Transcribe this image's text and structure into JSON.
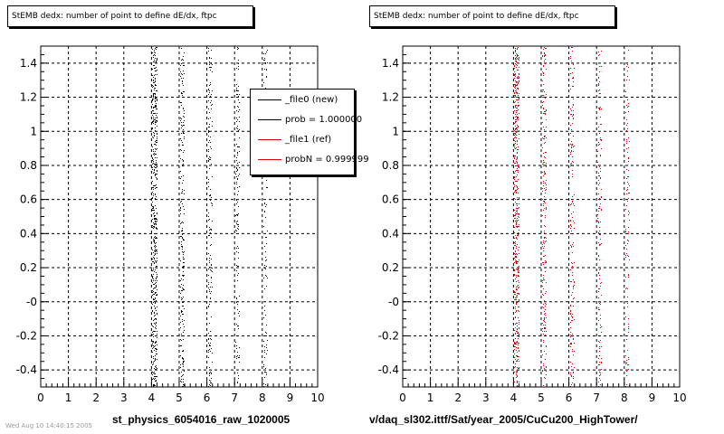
{
  "colors": {
    "file0": "#000000",
    "file1": "#dd0000",
    "grid": "#000000",
    "background": "#ffffff"
  },
  "footnote": "Wed Aug 10 14:40:15 2005",
  "chart_data": [
    {
      "type": "scatter",
      "title": "StEMB dedx: number of point to define dE/dx, ftpc",
      "xlabel": "st_physics_6054016_raw_1020005",
      "ylabel": "",
      "xlim": [
        0,
        10
      ],
      "ylim": [
        -0.5,
        1.5
      ],
      "xticks": [
        "0",
        "1",
        "2",
        "3",
        "4",
        "5",
        "6",
        "7",
        "8",
        "9",
        "10"
      ],
      "yticks": [
        "-0.4",
        "-0.2",
        "-0",
        "0.2",
        "0.4",
        "0.6",
        "0.8",
        "1",
        "1.2",
        "1.4"
      ],
      "grid": true,
      "legend_position": "top-right",
      "series": [
        {
          "name": "_file0 (new)",
          "color": "#000000",
          "x_bands": [
            4.1,
            5.1,
            6.1,
            7.1,
            8.1
          ],
          "y_range": [
            -0.5,
            1.5
          ]
        }
      ],
      "legend": [
        {
          "label": "_file0 (new)",
          "color": "#000000"
        },
        {
          "label": "prob = 1.000000",
          "color": "#000000"
        },
        {
          "label": "_file1 (ref)",
          "color": "#dd0000"
        },
        {
          "label": "probN = 0.999999",
          "color": "#dd0000"
        }
      ]
    },
    {
      "type": "scatter",
      "title": "StEMB dedx: number of point to define dE/dx, ftpc",
      "xlabel": "v/daq_sl302.ittf/Sat/year_2005/CuCu200_HighTower/",
      "ylabel": "",
      "xlim": [
        0,
        10
      ],
      "ylim": [
        -0.5,
        1.5
      ],
      "xticks": [
        "0",
        "1",
        "2",
        "3",
        "4",
        "5",
        "6",
        "7",
        "8",
        "9",
        "10"
      ],
      "yticks": [
        "-0.4",
        "-0.2",
        "-0",
        "0.2",
        "0.4",
        "0.6",
        "0.8",
        "1",
        "1.2",
        "1.4"
      ],
      "grid": true,
      "series": [
        {
          "name": "_file1 (ref)",
          "color": "#dd0000",
          "x_bands": [
            4.1,
            5.1,
            6.1,
            7.1,
            8.1
          ],
          "y_range": [
            -0.5,
            1.5
          ]
        }
      ]
    }
  ]
}
